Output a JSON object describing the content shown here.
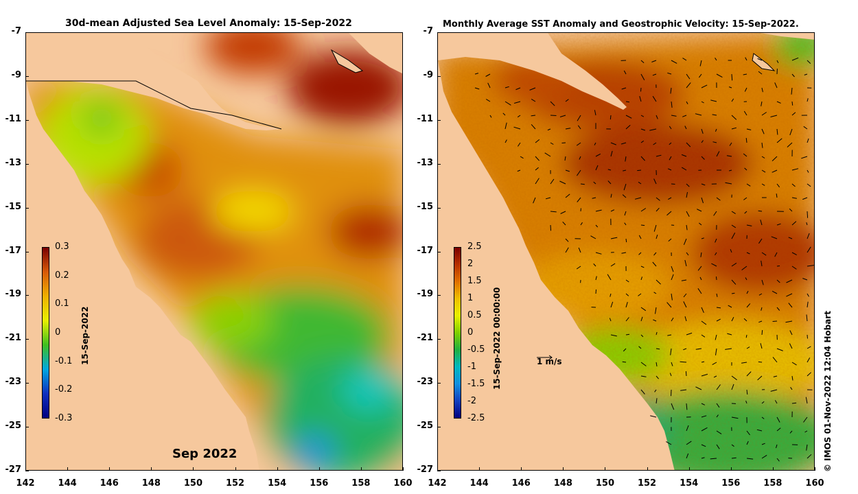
{
  "left_panel": {
    "title": "30d-mean Adjusted Sea Level Anomaly: 15-Sep-2022",
    "colorbar_ticks": [
      "0.3",
      "0.2",
      "0.1",
      "0",
      "-0.1",
      "-0.2",
      "-0.3"
    ],
    "colorbar_label": "15-Sep-2022",
    "month_label": "Sep 2022"
  },
  "right_panel": {
    "title": "Monthly Average SST Anomaly  and Geostrophic Velocity: 15-Sep-2022.",
    "colorbar_ticks": [
      "2.5",
      "2",
      "1.5",
      "1",
      "0.5",
      "0",
      "-0.5",
      "-1",
      "-1.5",
      "-2",
      "-2.5"
    ],
    "colorbar_label": "15-Sep-2022 00:00:00",
    "velocity_reference": "1 m/s"
  },
  "axes": {
    "y_ticks": [
      "-7",
      "-9",
      "-11",
      "-13",
      "-15",
      "-17",
      "-19",
      "-21",
      "-23",
      "-25",
      "-27"
    ],
    "x_ticks": [
      "142",
      "144",
      "146",
      "148",
      "150",
      "152",
      "154",
      "156",
      "158",
      "160"
    ]
  },
  "credit": "© IMOS 01-Nov-2022 12:04 Hobart",
  "colors": {
    "land": "#f9c9a0",
    "high": "#8c0a00",
    "mid_high": "#d8650a",
    "neutral": "#f2e200",
    "low": "#22b020",
    "very_low": "#00d0e0"
  }
}
